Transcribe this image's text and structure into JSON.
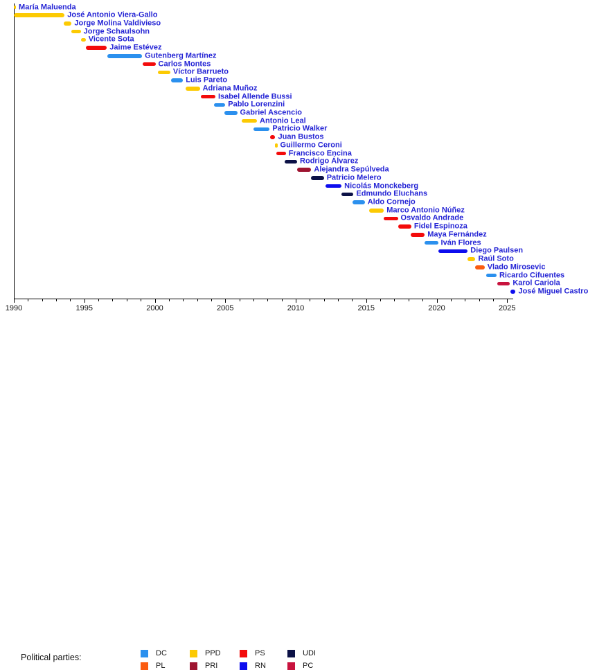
{
  "chart_data": {
    "type": "bar",
    "variant": "horizontal-timeline",
    "title": "",
    "x_axis": {
      "min": 1990,
      "max": 2025.6,
      "major_ticks": [
        1990,
        1995,
        2000,
        2005,
        2010,
        2015,
        2020,
        2025
      ],
      "minor_tick_interval": 1,
      "grid": "off"
    },
    "bars": [
      {
        "name": "María Maluenda",
        "party": "PPD",
        "start": 1990.0,
        "end": 1990.15
      },
      {
        "name": "José Antonio Viera-Gallo",
        "party": "PPD",
        "start": 1990.0,
        "end": 1993.6
      },
      {
        "name": "Jorge Molina Valdivieso",
        "party": "PPD",
        "start": 1993.55,
        "end": 1994.1
      },
      {
        "name": "Jorge Schaulsohn",
        "party": "PPD",
        "start": 1994.1,
        "end": 1994.75
      },
      {
        "name": "Vicente Sota",
        "party": "PPD",
        "start": 1994.75,
        "end": 1995.1
      },
      {
        "name": "Jaime Estévez",
        "party": "PS",
        "start": 1995.1,
        "end": 1996.6
      },
      {
        "name": "Gutenberg Martínez",
        "party": "DC",
        "start": 1996.65,
        "end": 1999.1
      },
      {
        "name": "Carlos Montes",
        "party": "PS",
        "start": 1999.15,
        "end": 2000.05
      },
      {
        "name": "Víctor Barrueto",
        "party": "PPD",
        "start": 2000.2,
        "end": 2001.1
      },
      {
        "name": "Luis Pareto",
        "party": "DC",
        "start": 2001.15,
        "end": 2002.0
      },
      {
        "name": "Adriana Muñoz",
        "party": "PPD",
        "start": 2002.2,
        "end": 2003.2
      },
      {
        "name": "Isabel Allende Bussi",
        "party": "PS",
        "start": 2003.25,
        "end": 2004.3
      },
      {
        "name": "Pablo Lorenzini",
        "party": "DC",
        "start": 2004.2,
        "end": 2005.0
      },
      {
        "name": "Gabriel Ascencio",
        "party": "DC",
        "start": 2004.95,
        "end": 2005.85
      },
      {
        "name": "Antonio Leal",
        "party": "PPD",
        "start": 2006.15,
        "end": 2007.25
      },
      {
        "name": "Patricio Walker",
        "party": "DC",
        "start": 2007.0,
        "end": 2008.15
      },
      {
        "name": "Juan Bustos",
        "party": "PS",
        "start": 2008.2,
        "end": 2008.55
      },
      {
        "name": "Guillermo Ceroni",
        "party": "PPD",
        "start": 2008.55,
        "end": 2008.7
      },
      {
        "name": "Francisco Encina",
        "party": "PS",
        "start": 2008.6,
        "end": 2009.3
      },
      {
        "name": "Rodrigo Álvarez",
        "party": "UDI",
        "start": 2009.2,
        "end": 2010.1
      },
      {
        "name": "Alejandra Sepúlveda",
        "party": "PRI",
        "start": 2010.1,
        "end": 2011.1
      },
      {
        "name": "Patricio Melero",
        "party": "UDI",
        "start": 2011.1,
        "end": 2012.0
      },
      {
        "name": "Nicolás Monckeberg",
        "party": "RN",
        "start": 2012.1,
        "end": 2013.25
      },
      {
        "name": "Edmundo Eluchans",
        "party": "UDI",
        "start": 2013.25,
        "end": 2014.1
      },
      {
        "name": "Aldo Cornejo",
        "party": "DC",
        "start": 2014.05,
        "end": 2014.9
      },
      {
        "name": "Marco Antonio Núñez",
        "party": "PPD",
        "start": 2015.2,
        "end": 2016.25
      },
      {
        "name": "Osvaldo Andrade",
        "party": "PS",
        "start": 2016.25,
        "end": 2017.25
      },
      {
        "name": "Fidel Espinoza",
        "party": "PS",
        "start": 2017.25,
        "end": 2018.2
      },
      {
        "name": "Maya Fernández",
        "party": "PS",
        "start": 2018.15,
        "end": 2019.15
      },
      {
        "name": "Iván Flores",
        "party": "DC",
        "start": 2019.15,
        "end": 2020.1
      },
      {
        "name": "Diego Paulsen",
        "party": "RN",
        "start": 2020.1,
        "end": 2022.2
      },
      {
        "name": "Raúl Soto",
        "party": "PPD",
        "start": 2022.2,
        "end": 2022.75
      },
      {
        "name": "Vlado Mirosevic",
        "party": "PL",
        "start": 2022.75,
        "end": 2023.4
      },
      {
        "name": "Ricardo Cifuentes",
        "party": "DC",
        "start": 2023.5,
        "end": 2024.25
      },
      {
        "name": "Karol Cariola",
        "party": "PC",
        "start": 2024.3,
        "end": 2025.2
      },
      {
        "name": "José Miguel Castro",
        "party": "RN",
        "start": 2025.25,
        "end": 2025.6
      }
    ]
  },
  "legend": {
    "label": "Political parties:",
    "entries": [
      {
        "code": "DC",
        "color": "#2b90ee"
      },
      {
        "code": "PPD",
        "color": "#fcca03"
      },
      {
        "code": "PS",
        "color": "#f30b0b"
      },
      {
        "code": "UDI",
        "color": "#0c1146"
      },
      {
        "code": "PL",
        "color": "#fb5c10"
      },
      {
        "code": "PRI",
        "color": "#9e1430"
      },
      {
        "code": "RN",
        "color": "#0d0dee"
      },
      {
        "code": "PC",
        "color": "#c8133e"
      }
    ]
  },
  "styles": {
    "name_label_color": "#2525d5",
    "axis_color": "#000000",
    "background": "#ffffff"
  }
}
